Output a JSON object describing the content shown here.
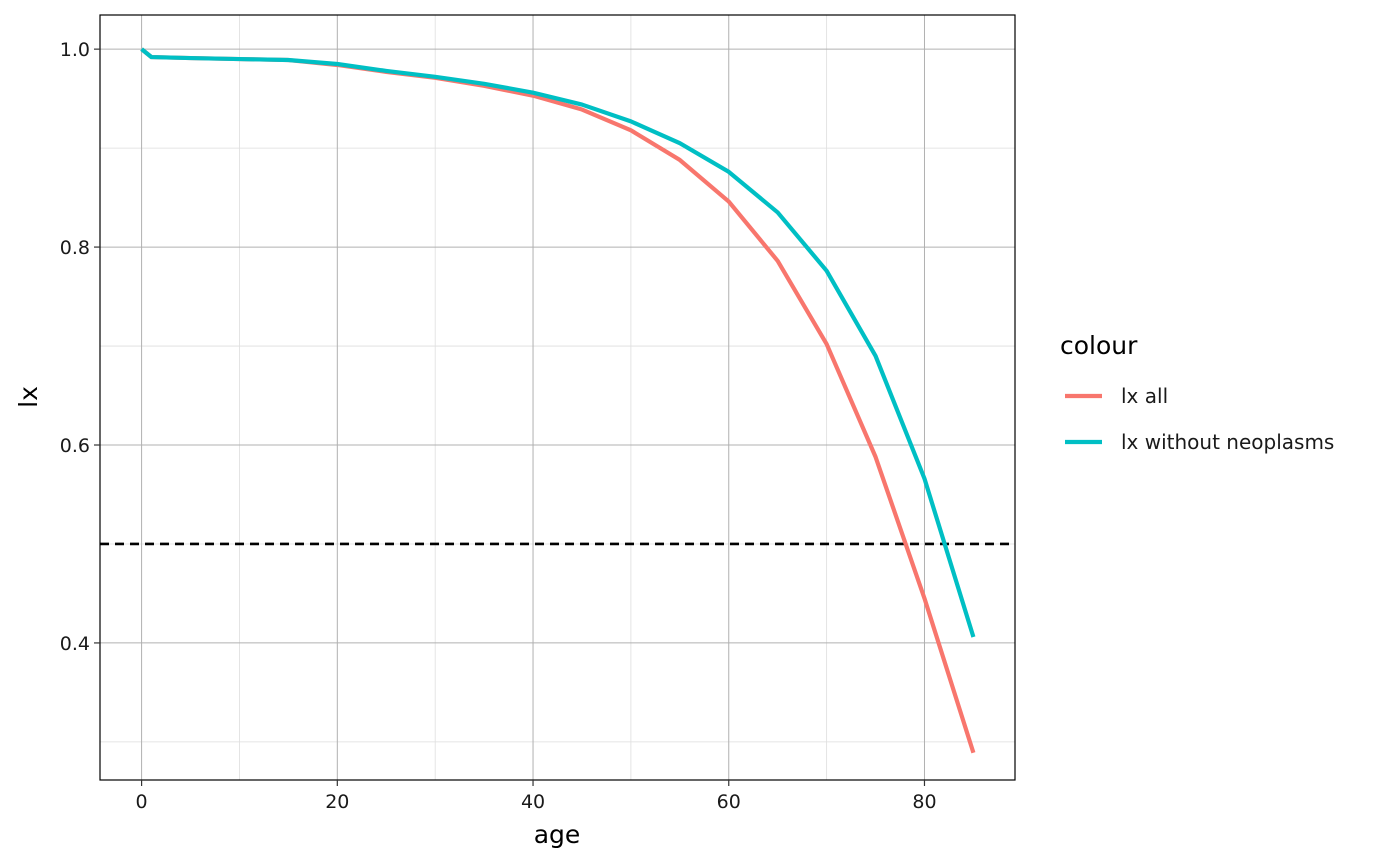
{
  "chart_data": {
    "type": "line",
    "xlabel": "age",
    "ylabel": "lx",
    "xlim": [
      -4.25,
      89.25
    ],
    "ylim": [
      0.2615,
      1.0345
    ],
    "x_ticks": [
      0,
      20,
      40,
      60,
      80
    ],
    "x_minor_ticks": [
      10,
      30,
      50,
      70
    ],
    "y_ticks": [
      0.4,
      0.6,
      0.8,
      1.0
    ],
    "y_tick_labels": [
      "0.4",
      "0.6",
      "0.8",
      "1.0"
    ],
    "y_minor_ticks": [
      0.3,
      0.5,
      0.7,
      0.9
    ],
    "grid": true,
    "legend": {
      "title": "colour",
      "position": "right"
    },
    "reference_line": {
      "y": 0.5,
      "style": "dashed",
      "color": "#000000"
    },
    "x": [
      0,
      1,
      5,
      10,
      15,
      20,
      25,
      30,
      35,
      40,
      45,
      50,
      55,
      60,
      65,
      70,
      75,
      80,
      85
    ],
    "series": [
      {
        "name": "lx all",
        "color": "#F8766D",
        "values": [
          1.0,
          0.992,
          0.991,
          0.99,
          0.989,
          0.984,
          0.977,
          0.971,
          0.963,
          0.953,
          0.939,
          0.918,
          0.888,
          0.846,
          0.786,
          0.702,
          0.588,
          0.445,
          0.289
        ]
      },
      {
        "name": "lx without neoplasms",
        "color": "#00BFC4",
        "values": [
          1.0,
          0.992,
          0.991,
          0.99,
          0.989,
          0.985,
          0.978,
          0.972,
          0.965,
          0.956,
          0.944,
          0.927,
          0.905,
          0.876,
          0.835,
          0.776,
          0.69,
          0.566,
          0.406
        ]
      }
    ]
  }
}
